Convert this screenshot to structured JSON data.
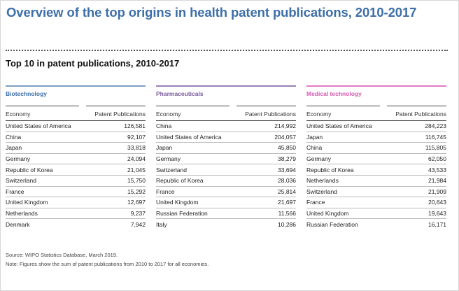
{
  "title": "Overview of the top origins in health patent publications, 2010-2017",
  "subtitle": "Top 10 in patent publications, 2010-2017",
  "column_headers": {
    "economy": "Economy",
    "publications": "Patent Publications"
  },
  "colors": {
    "biotechnology": "#7f9fbf",
    "pharmaceuticals": "#9b7fb5",
    "medical_technology": "#e27bc4",
    "title": "#3d6fa8"
  },
  "tables": [
    {
      "name": "Biotechnology",
      "rows": [
        {
          "economy": "United States of America",
          "value": "126,581"
        },
        {
          "economy": "China",
          "value": "92,107"
        },
        {
          "economy": "Japan",
          "value": "33,818"
        },
        {
          "economy": "Germany",
          "value": "24,094"
        },
        {
          "economy": "Republic of Korea",
          "value": "21,045"
        },
        {
          "economy": "Switzerland",
          "value": "15,750"
        },
        {
          "economy": "France",
          "value": "15,292"
        },
        {
          "economy": "United Kingdom",
          "value": "12,697"
        },
        {
          "economy": "Netherlands",
          "value": "9,237"
        },
        {
          "economy": "Denmark",
          "value": "7,942"
        }
      ]
    },
    {
      "name": "Pharmaceuticals",
      "rows": [
        {
          "economy": "China",
          "value": "214,992"
        },
        {
          "economy": "United States of America",
          "value": "204,057"
        },
        {
          "economy": "Japan",
          "value": "45,850"
        },
        {
          "economy": "Germany",
          "value": "38,279"
        },
        {
          "economy": "Switzerland",
          "value": "33,694"
        },
        {
          "economy": "Republic of Korea",
          "value": "28,036"
        },
        {
          "economy": "France",
          "value": "25,814"
        },
        {
          "economy": "United Kingdom",
          "value": "21,697"
        },
        {
          "economy": "Russian Federation",
          "value": "11,566"
        },
        {
          "economy": "Italy",
          "value": "10,286"
        }
      ]
    },
    {
      "name": "Medical technology",
      "rows": [
        {
          "economy": "United States of America",
          "value": "284,223"
        },
        {
          "economy": "Japan",
          "value": "116,745"
        },
        {
          "economy": "China",
          "value": "115,805"
        },
        {
          "economy": "Germany",
          "value": "62,050"
        },
        {
          "economy": "Republic of Korea",
          "value": "43,533"
        },
        {
          "economy": "Netherlands",
          "value": "21,984"
        },
        {
          "economy": "Switzerland",
          "value": "21,909"
        },
        {
          "economy": "France",
          "value": "20,643"
        },
        {
          "economy": "United Kingdom",
          "value": "19,643"
        },
        {
          "economy": "Russian Federation",
          "value": "16,171"
        }
      ]
    }
  ],
  "source": "Source: WIPO Statistics Database, March 2019.",
  "note": "Note: Figures show the sum of patent publications from 2010 to 2017 for all economies."
}
